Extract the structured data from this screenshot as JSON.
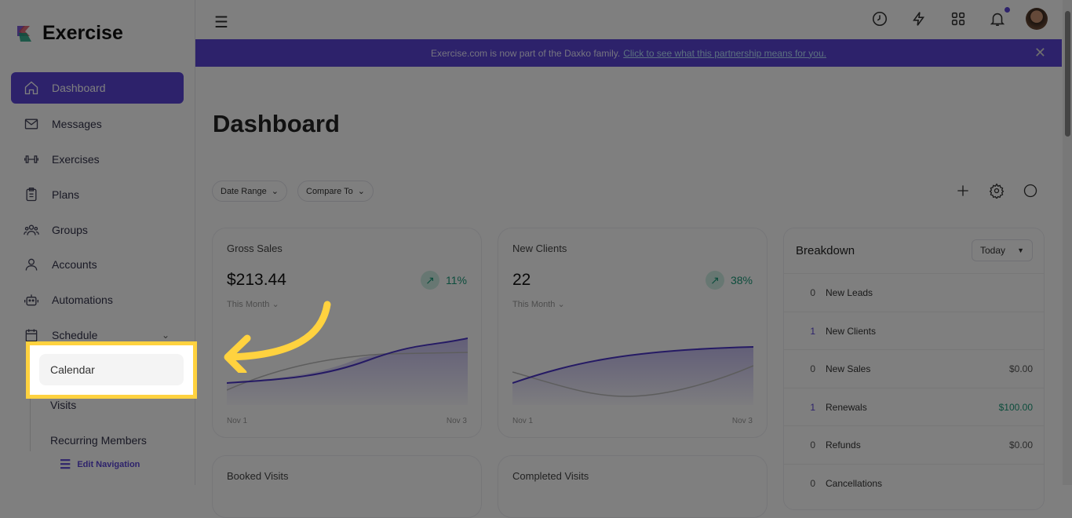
{
  "app": {
    "name": "Exercise"
  },
  "sidebar": {
    "items": [
      {
        "label": "Dashboard",
        "icon": "home-icon"
      },
      {
        "label": "Messages",
        "icon": "mail-icon"
      },
      {
        "label": "Exercises",
        "icon": "dumbbell-icon"
      },
      {
        "label": "Plans",
        "icon": "clipboard-icon"
      },
      {
        "label": "Groups",
        "icon": "users-icon"
      },
      {
        "label": "Accounts",
        "icon": "user-icon"
      },
      {
        "label": "Automations",
        "icon": "robot-icon"
      },
      {
        "label": "Schedule",
        "icon": "calendar-icon"
      }
    ],
    "schedule_sub": [
      "Calendar",
      "Visits",
      "Recurring Members"
    ],
    "edit_nav": "Edit Navigation"
  },
  "banner": {
    "text": "Exercise.com is now part of the Daxko family.",
    "link": "Click to see what this partnership means for you."
  },
  "page": {
    "title": "Dashboard",
    "filters": [
      "Date Range",
      "Compare To"
    ]
  },
  "cards": [
    {
      "title": "Gross Sales",
      "value": "$213.44",
      "trend": "11%",
      "period": "This Month",
      "x_start": "Nov 1",
      "x_end": "Nov 3"
    },
    {
      "title": "New Clients",
      "value": "22",
      "trend": "38%",
      "period": "This Month",
      "x_start": "Nov 1",
      "x_end": "Nov 3"
    },
    {
      "title": "Booked Visits"
    },
    {
      "title": "Completed Visits"
    }
  ],
  "breakdown": {
    "title": "Breakdown",
    "range": "Today",
    "rows": [
      {
        "count": "0",
        "label": "New Leads",
        "amount": ""
      },
      {
        "count": "1",
        "label": "New Clients",
        "amount": ""
      },
      {
        "count": "0",
        "label": "New Sales",
        "amount": "$0.00"
      },
      {
        "count": "1",
        "label": "Renewals",
        "amount": "$100.00"
      },
      {
        "count": "0",
        "label": "Refunds",
        "amount": "$0.00"
      },
      {
        "count": "0",
        "label": "Cancellations",
        "amount": ""
      }
    ]
  },
  "colors": {
    "brand": "#5b45d6",
    "highlight": "#ffd23f",
    "positive": "#1b9a7a"
  }
}
